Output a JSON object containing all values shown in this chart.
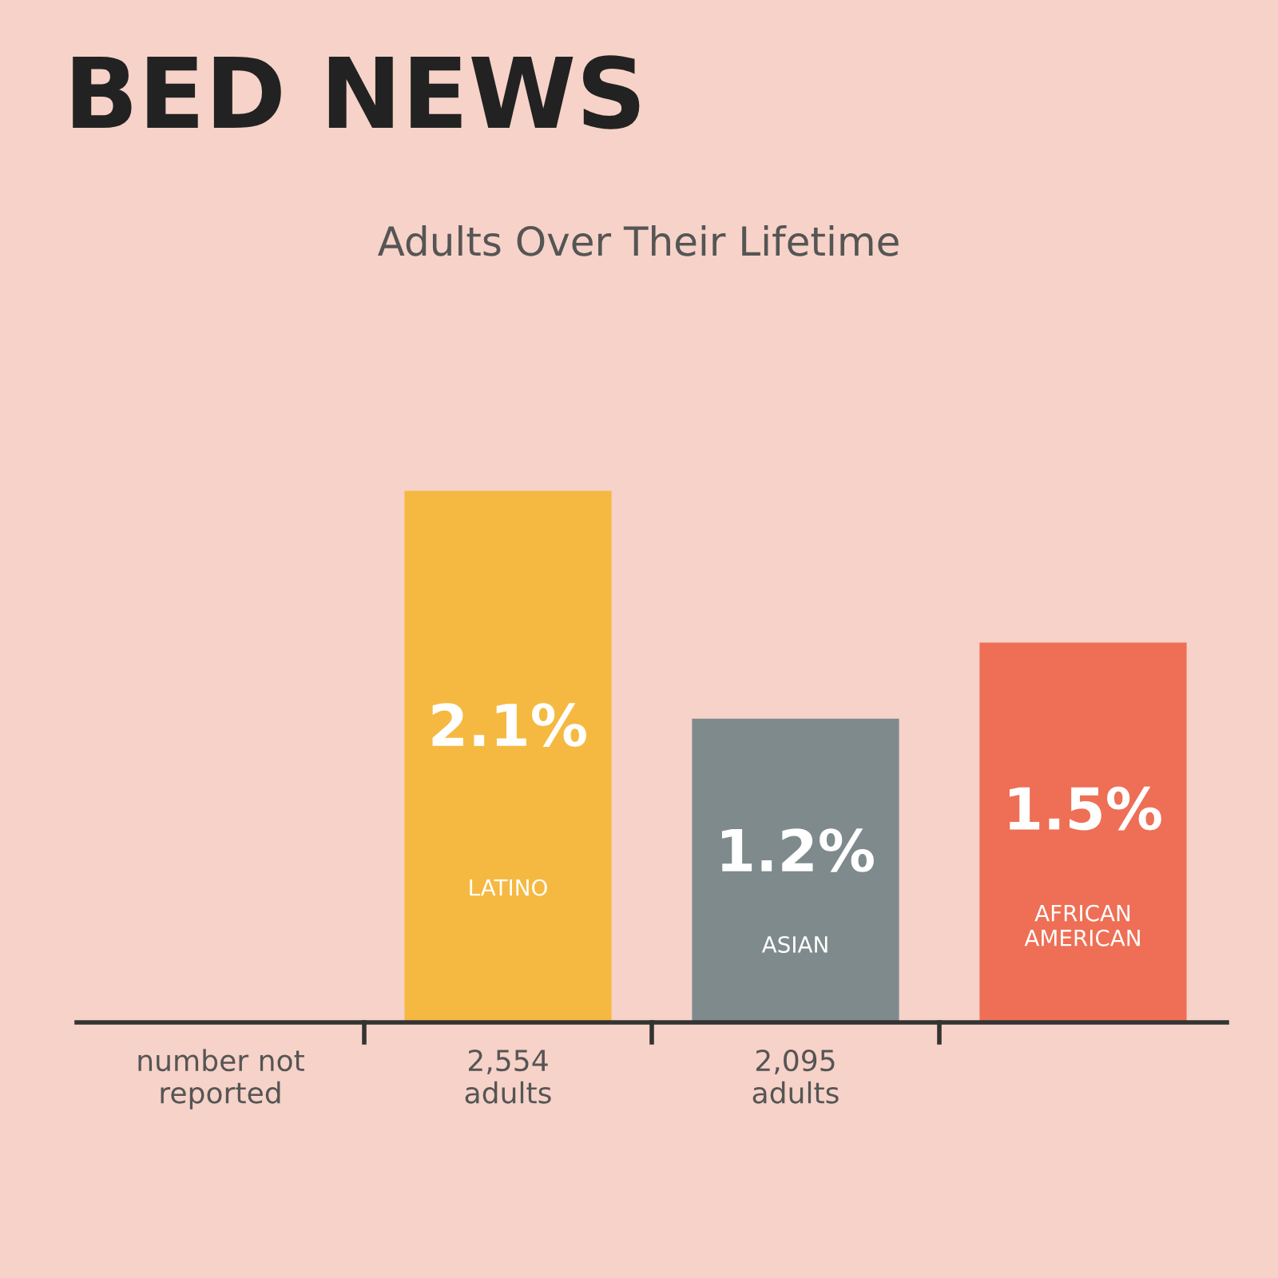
{
  "chart_data": {
    "type": "bar",
    "title": "BED NEWS",
    "subtitle": "Adults Over Their Lifetime",
    "categories": [
      "number not reported",
      "2,554 adults",
      "2,095 adults",
      null
    ],
    "values": [
      null,
      2.1,
      1.2,
      1.5
    ],
    "colors": [
      "#4a6272",
      "#f5b942",
      "#7f8a8c",
      "#ee6f55"
    ],
    "value_labels": [
      null,
      "2.1%\nLATINO",
      "1.2%\nASIAN",
      "1.5%\nAFRICAN AMERICAN"
    ]
  }
}
